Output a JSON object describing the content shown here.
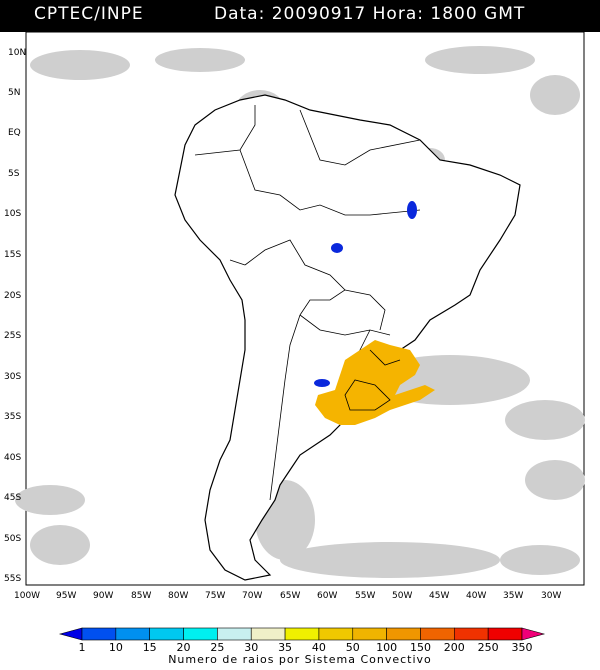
{
  "header": {
    "agency": "CPTEC/INPE",
    "datetime": "Data: 20090917 Hora: 1800 GMT"
  },
  "map": {
    "lat_labels": [
      "10N",
      "5N",
      "EQ",
      "5S",
      "10S",
      "15S",
      "20S",
      "25S",
      "30S",
      "35S",
      "40S",
      "45S",
      "50S",
      "55S"
    ],
    "lon_labels": [
      "100W",
      "95W",
      "90W",
      "85W",
      "80W",
      "75W",
      "70W",
      "65W",
      "60W",
      "55W",
      "50W",
      "45W",
      "40W",
      "35W",
      "30W"
    ],
    "colors": {
      "cloud_gray": "#c8c8c8",
      "cloud_light": "#e0e0e0",
      "coast": "#000000",
      "lightning_orange": "#f5b400",
      "lightning_blue": "#0a28dc"
    }
  },
  "legend": {
    "values": [
      "1",
      "10",
      "15",
      "20",
      "25",
      "30",
      "35",
      "40",
      "50",
      "100",
      "150",
      "200",
      "250",
      "350"
    ],
    "colors": [
      "#0000e6",
      "#0050f0",
      "#0090f0",
      "#00c8f0",
      "#00f0f0",
      "#c8f0f0",
      "#f0f0c8",
      "#f0f000",
      "#f0c800",
      "#f0b400",
      "#f09600",
      "#f06400",
      "#f03200",
      "#f00000",
      "#f00078"
    ],
    "title": "Numero de raios por Sistema Convectivo"
  }
}
